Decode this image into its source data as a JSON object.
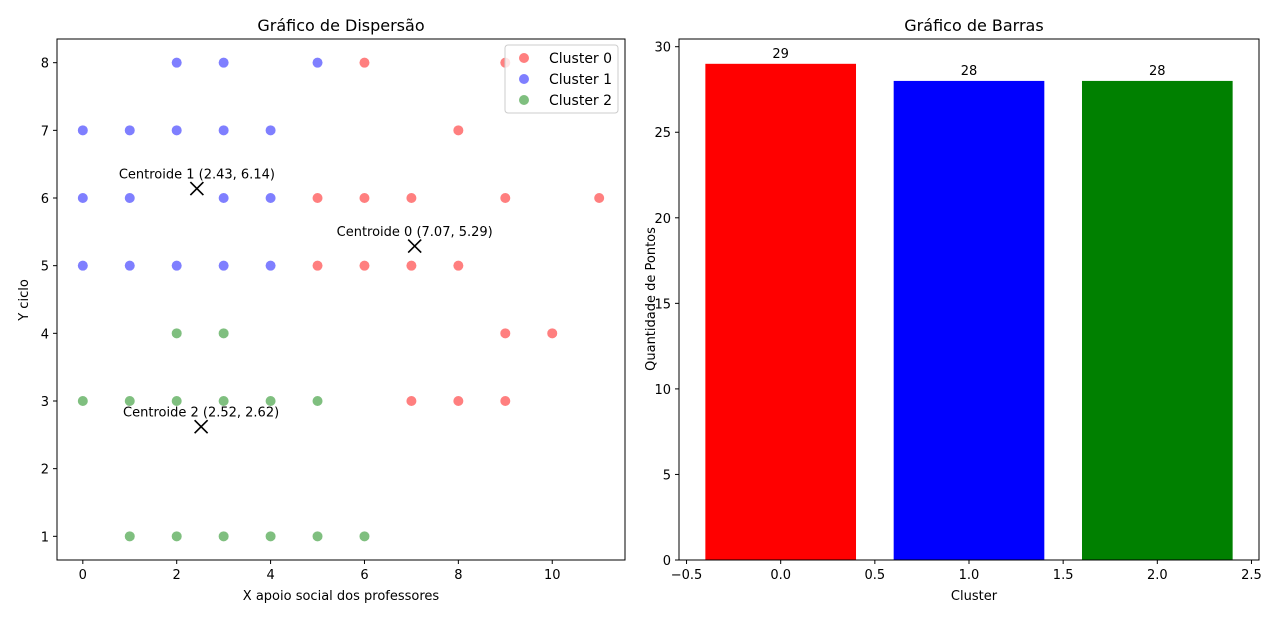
{
  "chart_data": [
    {
      "type": "scatter",
      "title": "Gráfico de Dispersão",
      "xlabel": "X apoio social dos professores",
      "ylabel": "Y ciclo",
      "xlim": [
        -0.55,
        11.55
      ],
      "ylim": [
        0.65,
        8.35
      ],
      "xticks": [
        0,
        2,
        4,
        6,
        8,
        10
      ],
      "yticks": [
        1,
        2,
        3,
        4,
        5,
        6,
        7,
        8
      ],
      "grid": false,
      "legend": "top-right",
      "series": [
        {
          "name": "Cluster 0",
          "color": "#ff0000",
          "points": [
            [
              6,
              8
            ],
            [
              9,
              8
            ],
            [
              8,
              7
            ],
            [
              5,
              6
            ],
            [
              6,
              6
            ],
            [
              7,
              6
            ],
            [
              9,
              6
            ],
            [
              11,
              6
            ],
            [
              5,
              5
            ],
            [
              6,
              5
            ],
            [
              7,
              5
            ],
            [
              8,
              5
            ],
            [
              9,
              4
            ],
            [
              10,
              4
            ],
            [
              7,
              3
            ],
            [
              8,
              3
            ],
            [
              9,
              3
            ]
          ]
        },
        {
          "name": "Cluster 1",
          "color": "#0000ff",
          "points": [
            [
              2,
              8
            ],
            [
              3,
              8
            ],
            [
              5,
              8
            ],
            [
              0,
              7
            ],
            [
              1,
              7
            ],
            [
              2,
              7
            ],
            [
              3,
              7
            ],
            [
              4,
              7
            ],
            [
              0,
              6
            ],
            [
              1,
              6
            ],
            [
              3,
              6
            ],
            [
              4,
              6
            ],
            [
              0,
              5
            ],
            [
              1,
              5
            ],
            [
              2,
              5
            ],
            [
              3,
              5
            ],
            [
              4,
              5
            ]
          ]
        },
        {
          "name": "Cluster 2",
          "color": "#008000",
          "points": [
            [
              2,
              4
            ],
            [
              3,
              4
            ],
            [
              0,
              3
            ],
            [
              1,
              3
            ],
            [
              2,
              3
            ],
            [
              3,
              3
            ],
            [
              4,
              3
            ],
            [
              5,
              3
            ],
            [
              1,
              1
            ],
            [
              2,
              1
            ],
            [
              3,
              1
            ],
            [
              4,
              1
            ],
            [
              5,
              1
            ],
            [
              6,
              1
            ]
          ]
        }
      ],
      "centroids": [
        {
          "label": "Centroide 0 (7.07, 5.29)",
          "x": 7.07,
          "y": 5.29
        },
        {
          "label": "Centroide 1 (2.43, 6.14)",
          "x": 2.43,
          "y": 6.14
        },
        {
          "label": "Centroide 2 (2.52, 2.62)",
          "x": 2.52,
          "y": 2.62
        }
      ]
    },
    {
      "type": "bar",
      "title": "Gráfico de Barras",
      "xlabel": "Cluster",
      "ylabel": "Quantidade de Pontos",
      "xlim": [
        -0.54,
        2.54
      ],
      "ylim": [
        0,
        30.45
      ],
      "xticks": [
        -0.5,
        0.0,
        0.5,
        1.0,
        1.5,
        2.0,
        2.5
      ],
      "yticks": [
        0,
        5,
        10,
        15,
        20,
        25,
        30
      ],
      "categories": [
        0,
        1,
        2
      ],
      "values": [
        29,
        28,
        28
      ],
      "colors": [
        "#ff0000",
        "#0000ff",
        "#008000"
      ],
      "bar_width": 0.8
    }
  ]
}
